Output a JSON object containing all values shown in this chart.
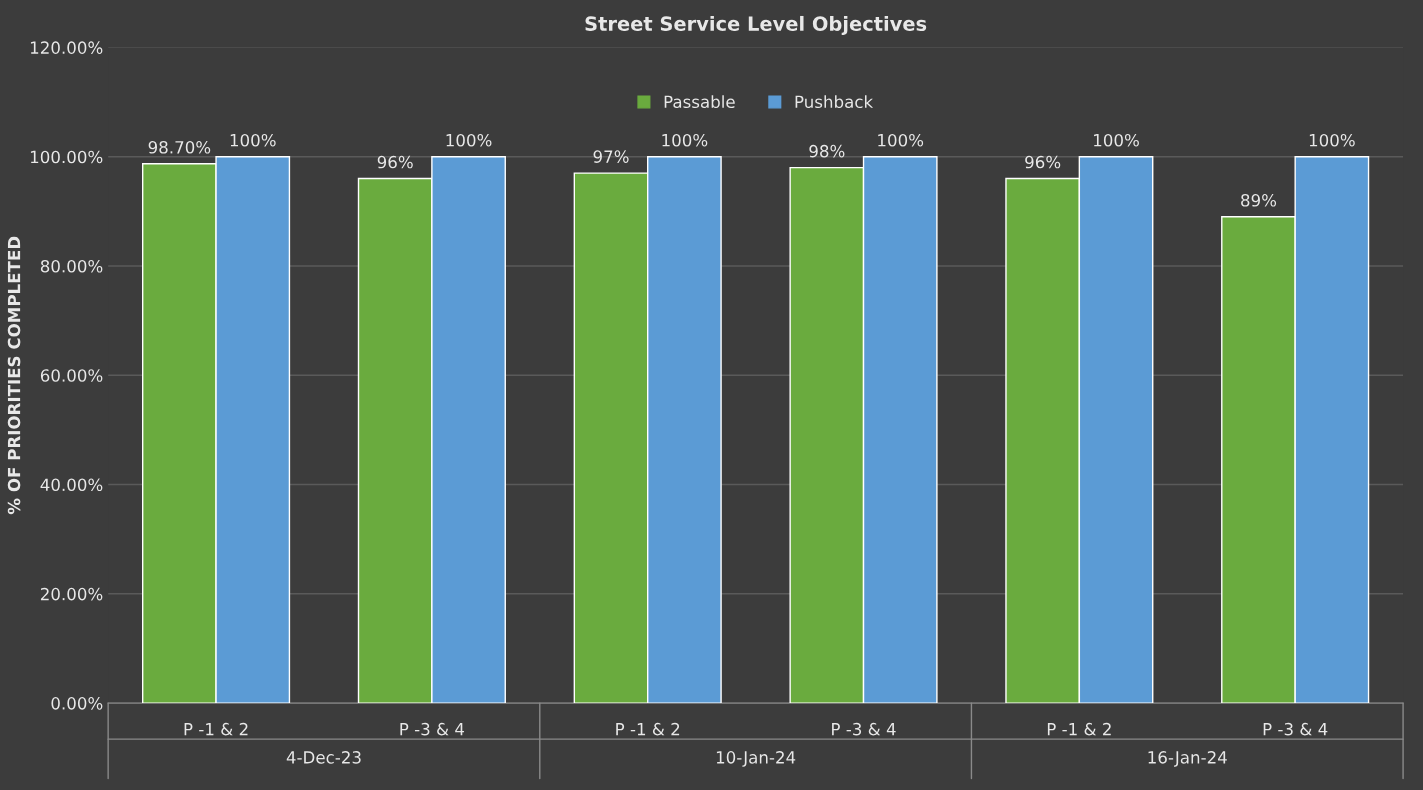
{
  "chart_data": {
    "type": "bar",
    "title": "Street Service Level Objectives",
    "ylabel": "% OF PRIORITIES COMPLETED",
    "categories": [
      "P -1 & 2",
      "P -3 & 4",
      "P -1 & 2",
      "P -3 & 4",
      "P -1 & 2",
      "P -3 & 4"
    ],
    "series": [
      {
        "name": "Passable",
        "color": "#6aab3e",
        "values": [
          98.7,
          96,
          97,
          98,
          96,
          89
        ],
        "value_labels": [
          "98.70%",
          "96%",
          "97%",
          "98%",
          "96%",
          "89%"
        ]
      },
      {
        "name": "Pushback",
        "color": "#5b9bd5",
        "values": [
          100,
          100,
          100,
          100,
          100,
          100
        ],
        "value_labels": [
          "100%",
          "100%",
          "100%",
          "100%",
          "100%",
          "100%"
        ]
      }
    ],
    "ylim": [
      0,
      120
    ],
    "yticks": [
      {
        "value": 0,
        "label": "0.00%"
      },
      {
        "value": 20,
        "label": "20.00%"
      },
      {
        "value": 40,
        "label": "40.00%"
      },
      {
        "value": 60,
        "label": "60.00%"
      },
      {
        "value": 80,
        "label": "80.00%"
      },
      {
        "value": 100,
        "label": "100.00%"
      },
      {
        "value": 120,
        "label": "120.00%"
      }
    ],
    "grid": "y",
    "legend": "top",
    "annotations": [
      "4-Dec-23",
      "10-Jan-24",
      "16-Jan-24"
    ]
  }
}
